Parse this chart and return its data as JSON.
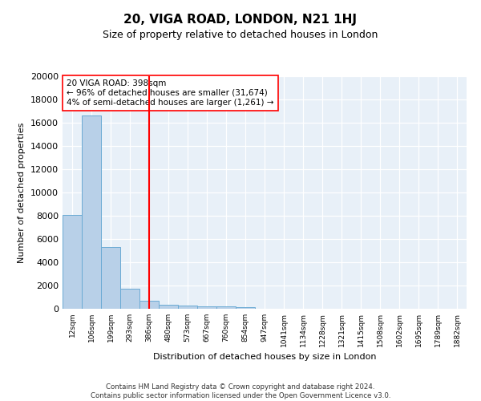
{
  "title": "20, VIGA ROAD, LONDON, N21 1HJ",
  "subtitle": "Size of property relative to detached houses in London",
  "xlabel": "Distribution of detached houses by size in London",
  "ylabel": "Number of detached properties",
  "bin_labels": [
    "12sqm",
    "106sqm",
    "199sqm",
    "293sqm",
    "386sqm",
    "480sqm",
    "573sqm",
    "667sqm",
    "760sqm",
    "854sqm",
    "947sqm",
    "1041sqm",
    "1134sqm",
    "1228sqm",
    "1321sqm",
    "1415sqm",
    "1508sqm",
    "1602sqm",
    "1695sqm",
    "1789sqm",
    "1882sqm"
  ],
  "bar_heights": [
    8100,
    16600,
    5300,
    1750,
    700,
    320,
    260,
    210,
    180,
    160,
    0,
    0,
    0,
    0,
    0,
    0,
    0,
    0,
    0,
    0,
    0
  ],
  "bar_color": "#b8d0e8",
  "bar_edge_color": "#6aaad4",
  "vline_color": "red",
  "annotation_text": "20 VIGA ROAD: 398sqm\n← 96% of detached houses are smaller (31,674)\n4% of semi-detached houses are larger (1,261) →",
  "annotation_box_color": "white",
  "annotation_box_edge": "red",
  "ylim": [
    0,
    20000
  ],
  "yticks": [
    0,
    2000,
    4000,
    6000,
    8000,
    10000,
    12000,
    14000,
    16000,
    18000,
    20000
  ],
  "footer": "Contains HM Land Registry data © Crown copyright and database right 2024.\nContains public sector information licensed under the Open Government Licence v3.0.",
  "plot_bg_color": "#e8f0f8",
  "vline_position": 4.5
}
